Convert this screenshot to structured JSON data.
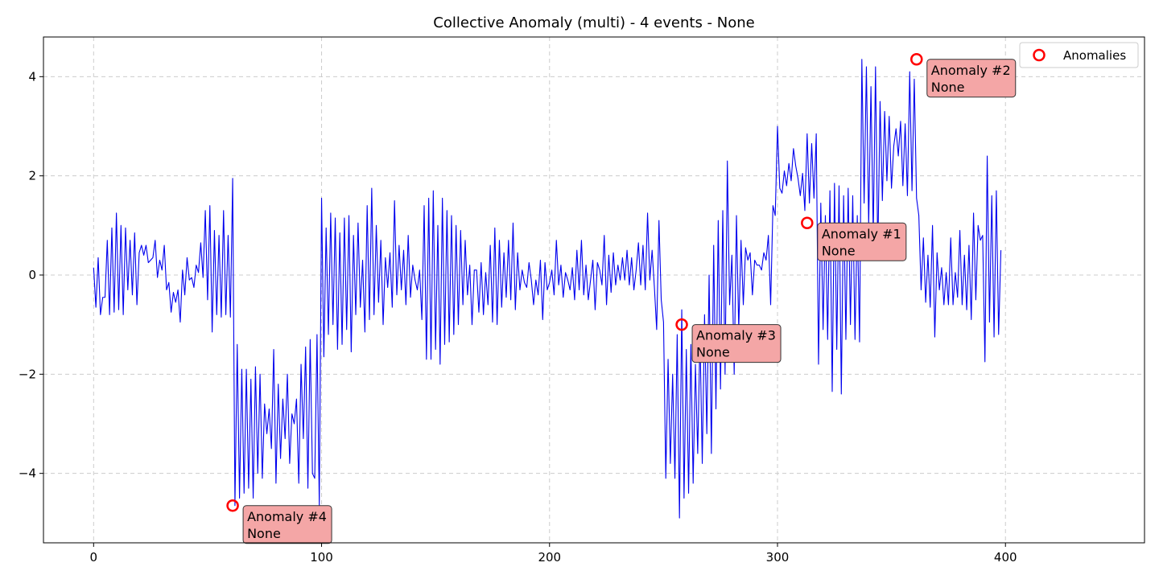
{
  "chart_data": {
    "type": "line",
    "title": "Collective Anomaly (multi) - 4 events - None",
    "xlabel": "",
    "ylabel": "",
    "xlim": [
      -22,
      461
    ],
    "ylim": [
      -5.4,
      4.8
    ],
    "x_ticks": [
      0,
      100,
      200,
      300,
      400
    ],
    "y_ticks": [
      -4,
      -2,
      0,
      2,
      4
    ],
    "x_tick_labels": [
      "0",
      "100",
      "200",
      "300",
      "400"
    ],
    "y_tick_labels": [
      "−4",
      "−2",
      "0",
      "2",
      "4"
    ],
    "grid": true,
    "legend_position": "top-right",
    "colors": {
      "series": "#0000ee",
      "anomaly": "#ff0000",
      "annotation_fill": "#f4a6a6"
    },
    "series": [
      {
        "values": [
          0.15,
          -0.65,
          0.35,
          -0.8,
          -0.45,
          -0.45,
          0.7,
          -0.8,
          0.95,
          -0.75,
          1.25,
          -0.7,
          1.0,
          -0.8,
          0.95,
          -0.3,
          0.7,
          -0.4,
          0.85,
          -0.6,
          0.45,
          0.6,
          0.4,
          0.6,
          0.25,
          0.3,
          0.35,
          0.7,
          -0.05,
          0.3,
          0.1,
          0.6,
          -0.3,
          -0.15,
          -0.75,
          -0.35,
          -0.55,
          -0.3,
          -0.95,
          0.1,
          -0.4,
          0.35,
          -0.1,
          -0.05,
          -0.25,
          0.2,
          0.05,
          0.65,
          -0.05,
          1.3,
          -0.5,
          1.4,
          -1.15,
          0.9,
          -0.8,
          0.8,
          -0.85,
          1.3,
          -0.8,
          0.8,
          -0.85,
          1.95,
          -4.65,
          -1.4,
          -4.5,
          -1.9,
          -4.4,
          -1.9,
          -4.3,
          -2.1,
          -4.5,
          -1.85,
          -4.0,
          -2.0,
          -4.1,
          -2.6,
          -3.2,
          -2.7,
          -3.5,
          -1.5,
          -4.2,
          -2.2,
          -3.7,
          -2.5,
          -3.3,
          -2.0,
          -3.8,
          -2.8,
          -3.0,
          -2.5,
          -4.2,
          -1.8,
          -3.3,
          -1.45,
          -4.3,
          -1.3,
          -4.0,
          -4.1,
          -1.2,
          -4.65,
          1.55,
          -1.65,
          0.95,
          -1.2,
          1.25,
          -1.0,
          1.15,
          -1.5,
          0.85,
          -1.4,
          1.15,
          -1.1,
          1.2,
          -1.55,
          0.8,
          -0.8,
          1.05,
          -0.65,
          0.3,
          -1.15,
          1.4,
          -0.9,
          1.75,
          -0.8,
          1.0,
          -0.55,
          0.7,
          -1.0,
          0.35,
          -0.25,
          0.45,
          -0.65,
          1.5,
          -0.4,
          0.6,
          -0.3,
          0.5,
          -0.6,
          0.8,
          -0.45,
          0.2,
          -0.1,
          -0.3,
          0.1,
          -0.9,
          1.4,
          -1.7,
          1.55,
          -1.7,
          1.7,
          -1.5,
          1.0,
          -1.8,
          1.55,
          -1.4,
          1.3,
          -1.35,
          1.2,
          -1.2,
          1.0,
          -1.0,
          0.9,
          -0.6,
          0.7,
          -0.4,
          0.2,
          -1.0,
          0.1,
          0.1,
          -0.75,
          0.25,
          -0.8,
          0.05,
          -0.6,
          0.6,
          -0.95,
          0.95,
          -1.0,
          0.7,
          -0.65,
          0.45,
          -0.45,
          0.7,
          -0.5,
          1.05,
          -0.7,
          0.45,
          -0.3,
          0.1,
          -0.15,
          -0.25,
          0.25,
          -0.1,
          -0.6,
          -0.1,
          -0.4,
          0.3,
          -0.9,
          0.25,
          -0.3,
          -0.15,
          0.1,
          -0.4,
          0.7,
          -0.2,
          0.2,
          -0.45,
          0.05,
          -0.1,
          -0.3,
          0.15,
          -0.5,
          0.5,
          -0.3,
          0.7,
          -0.4,
          0.2,
          -0.5,
          -0.1,
          0.3,
          -0.7,
          0.25,
          0.1,
          -0.2,
          0.8,
          -0.6,
          0.4,
          -0.35,
          0.45,
          -0.2,
          0.2,
          -0.1,
          0.35,
          -0.1,
          0.5,
          -0.2,
          0.35,
          -0.3,
          0.1,
          0.65,
          -0.2,
          0.6,
          -0.3,
          1.25,
          -0.1,
          0.5,
          -0.25,
          -1.1,
          1.1,
          -0.5,
          -0.95,
          -4.1,
          -1.7,
          -3.8,
          -2.0,
          -4.1,
          -1.2,
          -4.9,
          -0.7,
          -4.5,
          -1.5,
          -4.4,
          -1.4,
          -4.2,
          -1.8,
          -3.6,
          -1.2,
          -3.8,
          -0.8,
          -3.2,
          0.0,
          -3.6,
          0.6,
          -2.7,
          1.1,
          -2.3,
          1.3,
          -2.0,
          2.3,
          -0.6,
          0.4,
          -2.0,
          1.2,
          -1.1,
          0.7,
          -0.6,
          0.55,
          0.3,
          0.45,
          -0.4,
          0.3,
          0.2,
          0.2,
          0.1,
          0.45,
          0.3,
          0.8,
          -0.6,
          1.4,
          1.2,
          3.0,
          1.75,
          1.65,
          2.1,
          1.8,
          2.25,
          1.9,
          2.55,
          2.2,
          1.95,
          1.6,
          2.05,
          1.3,
          2.85,
          1.45,
          2.65,
          1.55,
          2.85,
          -1.8,
          1.45,
          -1.1,
          1.2,
          -1.3,
          1.7,
          -2.35,
          1.85,
          -1.5,
          1.8,
          -2.4,
          1.6,
          -1.3,
          1.75,
          -1.0,
          1.6,
          -1.3,
          1.2,
          -1.35,
          4.35,
          1.45,
          4.2,
          1.0,
          3.8,
          0.8,
          4.2,
          0.4,
          3.5,
          1.5,
          3.3,
          1.9,
          3.2,
          1.75,
          2.6,
          2.95,
          2.4,
          3.1,
          1.8,
          3.05,
          1.6,
          4.1,
          1.7,
          3.95,
          1.55,
          1.2,
          -0.3,
          0.75,
          -0.55,
          0.4,
          -0.65,
          1.0,
          -1.25,
          0.45,
          -0.3,
          0.15,
          -0.6,
          0.05,
          -0.6,
          0.75,
          -0.6,
          0.05,
          -0.45,
          0.9,
          -0.6,
          0.4,
          -0.7,
          0.6,
          -0.9,
          1.25,
          -0.5,
          1.0,
          0.7,
          0.8,
          -1.75,
          2.4,
          -0.95,
          1.6,
          -1.25,
          1.7,
          -1.2,
          0.5
        ]
      }
    ],
    "anomalies": [
      {
        "x": 313,
        "y": 1.05,
        "label": "Anomaly #1",
        "sublabel": "None"
      },
      {
        "x": 361,
        "y": 4.35,
        "label": "Anomaly #2",
        "sublabel": "None"
      },
      {
        "x": 258,
        "y": -1.0,
        "label": "Anomaly #3",
        "sublabel": "None"
      },
      {
        "x": 61,
        "y": -4.65,
        "label": "Anomaly #4",
        "sublabel": "None"
      }
    ],
    "legend": [
      {
        "label": "Anomalies"
      }
    ]
  }
}
